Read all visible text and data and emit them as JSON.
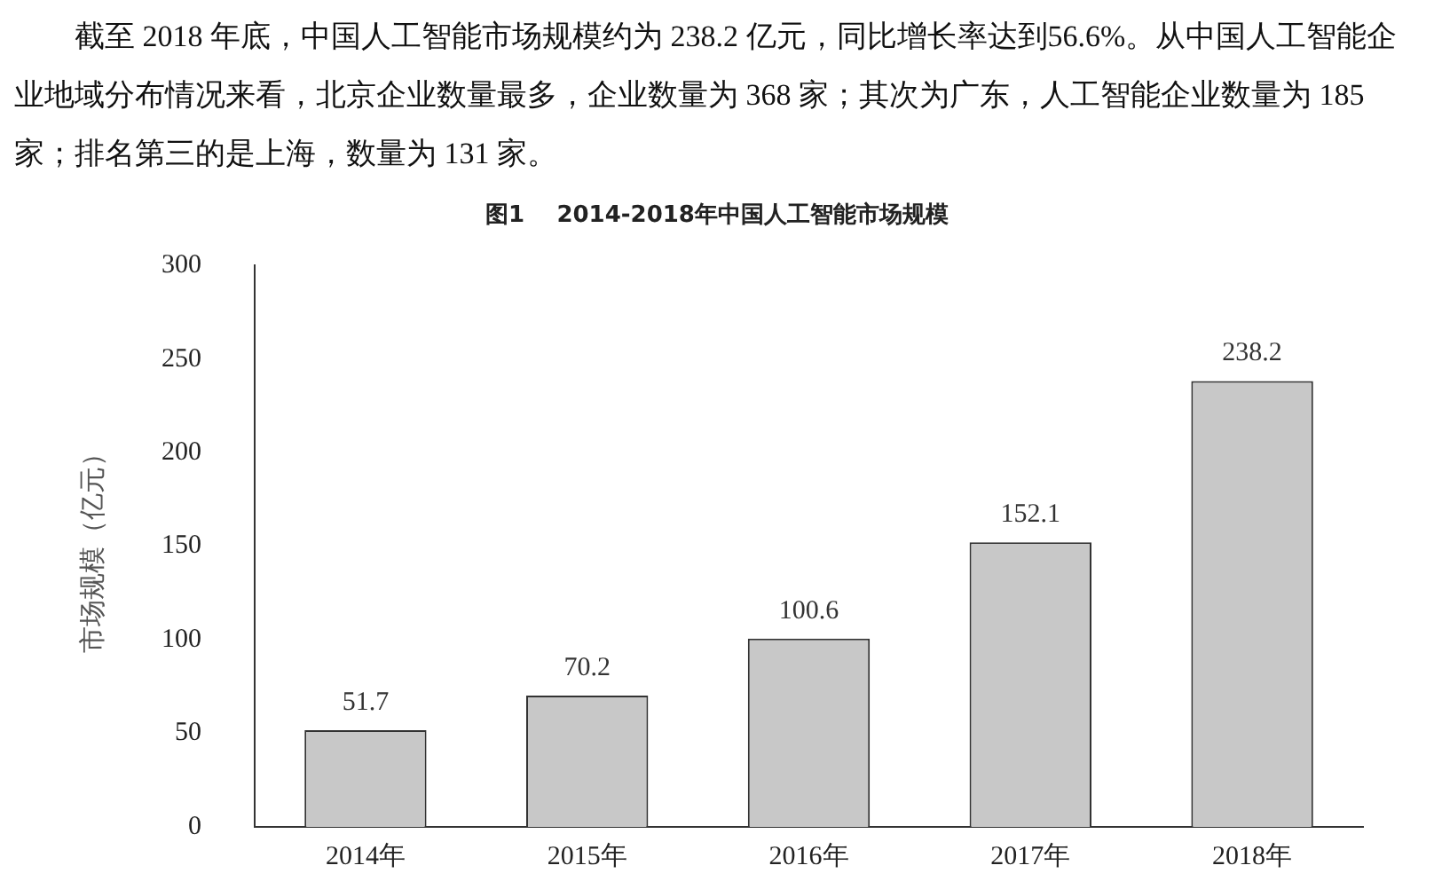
{
  "chart_data": {
    "type": "bar",
    "title": "图1    2014-2018年中国人工智能市场规模",
    "annotations": [
      "截至 2018 年底，中国人工智能市场规模约为 238.2 亿元，同比增长率达到56.6%。从中国人工智能企业地域分布情况来看，北京企业数量最多，企业数量为 368 家；其次为广东，人工智能企业数量为 185 家；排名第三的是上海，数量为 131 家。"
    ],
    "ylabel": "市场规模（亿元）",
    "categories": [
      "2014年",
      "2015年",
      "2016年",
      "2017年",
      "2018年"
    ],
    "values": [
      51.7,
      70.2,
      100.6,
      152.1,
      238.2
    ],
    "color": "#c8c8c8",
    "ylim": [
      0,
      300
    ],
    "yticks": [
      0,
      50,
      100,
      150,
      200,
      250,
      300
    ],
    "grid": false,
    "legend": false,
    "data_labels": true
  }
}
